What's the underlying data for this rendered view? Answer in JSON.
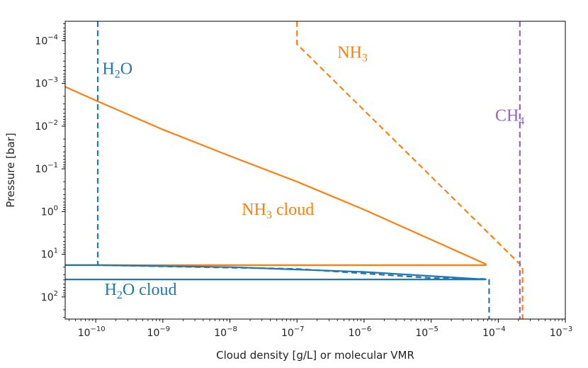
{
  "chart_data": {
    "type": "line",
    "xscale": "log",
    "yscale": "log",
    "xlabel": "Cloud density [g/L] or molecular VMR",
    "ylabel": "Pressure [bar]",
    "xlim": [
      3.5e-11,
      0.001
    ],
    "ylim": [
      330,
      3.5e-05
    ],
    "y_inverted": true,
    "x_ticks": [
      {
        "value": 1e-10,
        "base": "10",
        "exp": "−10"
      },
      {
        "value": 1e-09,
        "base": "10",
        "exp": "−9"
      },
      {
        "value": 1e-08,
        "base": "10",
        "exp": "−8"
      },
      {
        "value": 1e-07,
        "base": "10",
        "exp": "−7"
      },
      {
        "value": 1e-06,
        "base": "10",
        "exp": "−6"
      },
      {
        "value": 1e-05,
        "base": "10",
        "exp": "−5"
      },
      {
        "value": 0.0001,
        "base": "10",
        "exp": "−4"
      },
      {
        "value": 0.001,
        "base": "10",
        "exp": "−3"
      }
    ],
    "y_ticks": [
      {
        "value": 0.0001,
        "base": "10",
        "exp": "−4"
      },
      {
        "value": 0.001,
        "base": "10",
        "exp": "−3"
      },
      {
        "value": 0.01,
        "base": "10",
        "exp": "−2"
      },
      {
        "value": 0.1,
        "base": "10",
        "exp": "−1"
      },
      {
        "value": 1,
        "base": "10",
        "exp": "0"
      },
      {
        "value": 10,
        "base": "10",
        "exp": "1"
      },
      {
        "value": 100,
        "base": "10",
        "exp": "2"
      }
    ],
    "series": [
      {
        "name": "NH3 cloud",
        "style": "solid",
        "color": "#ff7f0e",
        "points": [
          [
            3.5e-11,
            0.0012
          ],
          [
            1e-10,
            0.0025
          ],
          [
            1e-09,
            0.012
          ],
          [
            1e-08,
            0.05
          ],
          [
            1e-07,
            0.2
          ],
          [
            1e-06,
            0.9
          ],
          [
            6.5e-05,
            17
          ],
          [
            6.5e-05,
            18
          ],
          [
            3.5e-11,
            18
          ]
        ]
      },
      {
        "name": "NH3",
        "style": "dashed",
        "color": "#ff7f0e",
        "points": [
          [
            1e-07,
            3.5e-05
          ],
          [
            1e-07,
            0.00012
          ],
          [
            0.00021,
            17
          ],
          [
            0.00023,
            20
          ],
          [
            0.00023,
            330
          ]
        ]
      },
      {
        "name": "H2O",
        "style": "dashed",
        "color": "#1f77b4",
        "points": [
          [
            1.07e-10,
            3.5e-05
          ],
          [
            1.07e-10,
            18
          ],
          [
            1e-07,
            22
          ],
          [
            1e-05,
            36
          ],
          [
            7.3e-05,
            38
          ],
          [
            7.3e-05,
            330
          ]
        ]
      },
      {
        "name": "H2O cloud",
        "style": "solid",
        "color": "#1f77b4",
        "points": [
          [
            3.5e-11,
            18
          ],
          [
            1e-10,
            18
          ],
          [
            1e-08,
            20
          ],
          [
            1e-06,
            26
          ],
          [
            6.5e-05,
            39
          ],
          [
            3.5e-11,
            39
          ]
        ]
      },
      {
        "name": "CH4",
        "style": "dashed",
        "color": "#9467bd",
        "points": [
          [
            0.00021,
            3.5e-05
          ],
          [
            0.00021,
            330
          ]
        ]
      }
    ],
    "annotations": [
      {
        "text_main": "H",
        "text_sub": "2",
        "text_tail": "O",
        "color": "#1f77b4",
        "x": 1.25e-10,
        "y": 0.0006
      },
      {
        "text_main": "NH",
        "text_sub": "3",
        "text_tail": "",
        "color": "#ff7f0e",
        "x": 4e-07,
        "y": 0.00025
      },
      {
        "text_main": "CH",
        "text_sub": "4",
        "text_tail": "",
        "color": "#9467bd",
        "x": 9e-05,
        "y": 0.0075
      },
      {
        "text_main": "NH",
        "text_sub": "3",
        "text_tail": " cloud",
        "color": "#ff7f0e",
        "x": 1.5e-08,
        "y": 1.2
      },
      {
        "text_main": "H",
        "text_sub": "2",
        "text_tail": "O cloud",
        "color": "#1f77b4",
        "x": 1.35e-10,
        "y": 90
      }
    ]
  }
}
